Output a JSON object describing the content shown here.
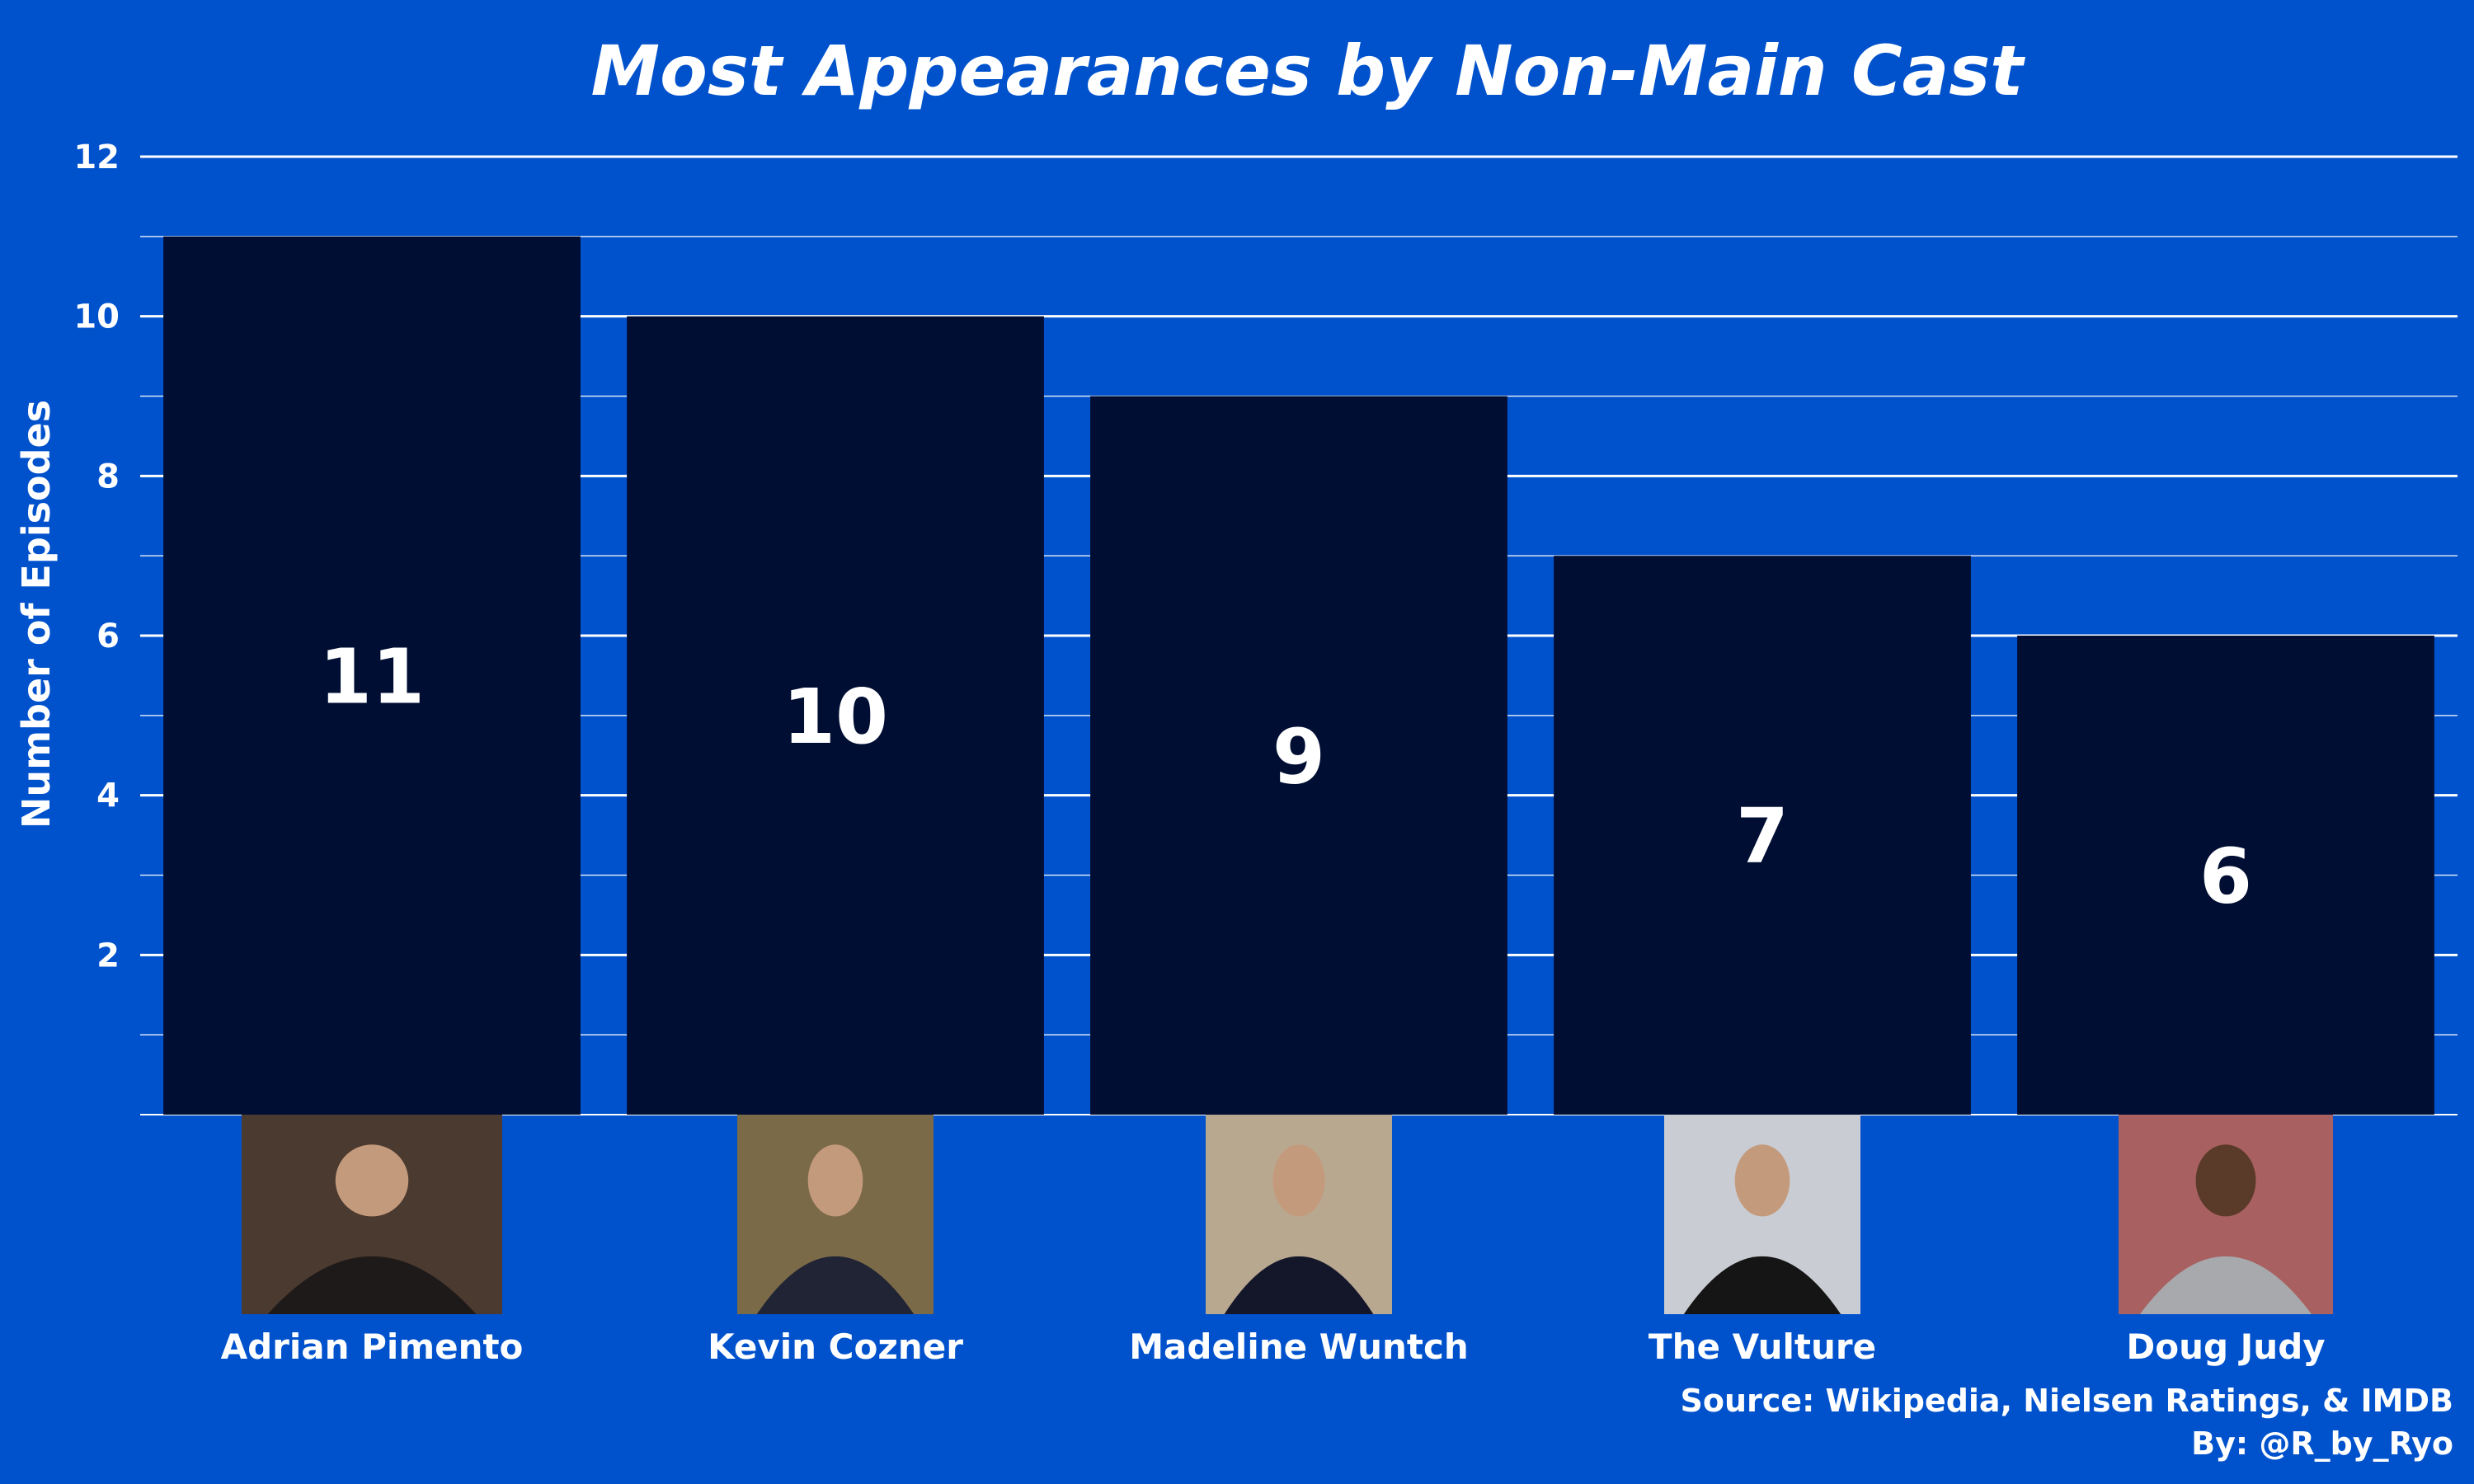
{
  "chart_data": {
    "type": "bar",
    "title": "Most Appearances by Non-Main Cast",
    "ylabel": "Number of Episodes",
    "xlabel": "",
    "categories": [
      "Adrian Pimento",
      "Kevin Cozner",
      "Madeline Wuntch",
      "The Vulture",
      "Doug Judy"
    ],
    "values": [
      11,
      10,
      9,
      7,
      6
    ],
    "data_labels": [
      "11",
      "10",
      "9",
      "7",
      "6"
    ],
    "ylim": [
      0,
      12
    ],
    "y_ticks": [
      2,
      4,
      6,
      8,
      10,
      12
    ],
    "y_minor_ticks": [
      1,
      3,
      5,
      7,
      9,
      11
    ],
    "grid": true,
    "legend": "none",
    "caption": [
      "Source: Wikipedia, Nielsen Ratings, & IMDB",
      "By: @R_by_Ryo"
    ],
    "category_images": [
      "photo",
      "photo",
      "photo",
      "photo",
      "photo"
    ]
  },
  "colors": {
    "background": "#0052cc",
    "bar": "#000e33",
    "grid": "#ffffff",
    "text": "#ffffff"
  }
}
